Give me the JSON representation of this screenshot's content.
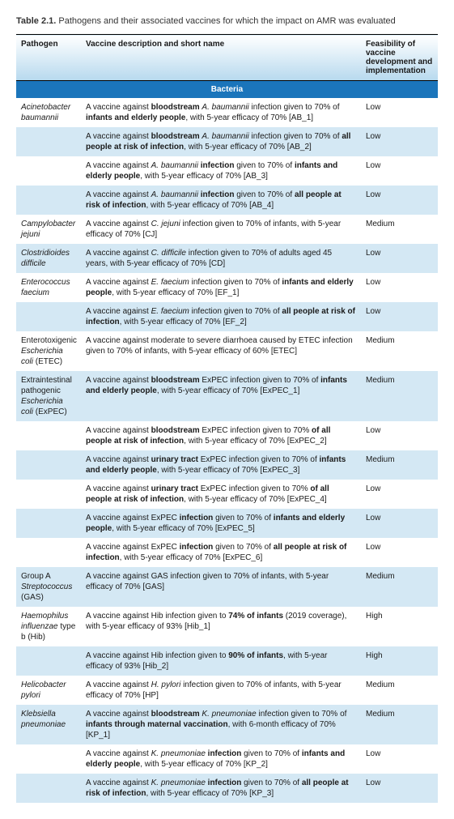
{
  "title_prefix": "Table 2.1.",
  "title_text": " Pathogens and their associated vaccines for which the impact on AMR was evaluated",
  "columns": {
    "c1": "Pathogen",
    "c2": "Vaccine description and short name",
    "c3": "Feasibility of vaccine development and implementation"
  },
  "section": "Bacteria",
  "rows": [
    {
      "alt": false,
      "pathogen": "Acinetobacter baumannii",
      "desc": "A vaccine against <b>bloodstream</b> <i>A. baumannii</i> infection given to 70% of <b>infants and elderly people</b>, with 5-year efficacy of 70% [AB_1]",
      "feas": "Low"
    },
    {
      "alt": true,
      "pathogen": "",
      "desc": "A vaccine against <b>bloodstream</b> <i>A. baumannii</i> infection given to 70% of <b>all people at risk of infection</b>, with 5-year efficacy of 70% [AB_2]",
      "feas": "Low"
    },
    {
      "alt": false,
      "pathogen": "",
      "desc": "A vaccine against <i>A. baumannii</i> <b>infection</b> given to 70% of <b>infants and elderly people</b>, with 5-year efficacy of 70% [AB_3]",
      "feas": "Low"
    },
    {
      "alt": true,
      "pathogen": "",
      "desc": "A vaccine against <i>A. baumannii</i> <b>infection</b> given to 70% of <b>all people at risk of infection</b>, with 5-year efficacy of 70% [AB_4]",
      "feas": "Low"
    },
    {
      "alt": false,
      "pathogen": "Campylobacter jejuni",
      "desc": "A vaccine against <i>C. jejuni</i> infection given to 70% of infants, with 5-year efficacy of 70% [CJ]",
      "feas": "Medium"
    },
    {
      "alt": true,
      "pathogen": "Clostridioides difficile",
      "desc": "A vaccine against <i>C. difficile</i> infection given to 70% of adults aged 45 years, with 5-year efficacy of 70% [CD]",
      "feas": "Low"
    },
    {
      "alt": false,
      "pathogen": "Enterococcus faecium",
      "desc": "A vaccine against <i>E. faecium</i> infection given to 70% of <b>infants and elderly people</b>, with 5-year efficacy of 70% [EF_1]",
      "feas": "Low"
    },
    {
      "alt": true,
      "pathogen": "",
      "desc": "A vaccine against <i>E. faecium</i> infection given to 70% of <b>all people at risk of infection</b>, with 5-year efficacy of 70% [EF_2]",
      "feas": "Low"
    },
    {
      "alt": false,
      "pathogen_html": "Enterotoxigenic <i>Escherichia coli</i> (ETEC)",
      "desc": "A vaccine against moderate to severe diarrhoea caused by ETEC infection given to 70% of infants, with 5-year efficacy of 60% [ETEC]",
      "feas": "Medium"
    },
    {
      "alt": true,
      "pathogen_html": "Extraintestinal pathogenic <i>Escherichia coli</i> (ExPEC)",
      "desc": "A vaccine against <b>bloodstream</b> ExPEC infection given to 70% of <b>infants and elderly people</b>, with 5-year efficacy of 70% [ExPEC_1]",
      "feas": "Medium"
    },
    {
      "alt": false,
      "pathogen": "",
      "desc": "A vaccine against <b>bloodstream</b> ExPEC infection given to 70% <b>of all people at risk of infection</b>, with 5-year efficacy of 70% [ExPEC_2]",
      "feas": "Low"
    },
    {
      "alt": true,
      "pathogen": "",
      "desc": "A vaccine against <b>urinary tract</b> ExPEC infection given to 70% of <b>infants and elderly people</b>, with 5-year efficacy of 70% [ExPEC_3]",
      "feas": "Medium"
    },
    {
      "alt": false,
      "pathogen": "",
      "desc": "A vaccine against <b>urinary tract</b> ExPEC infection given to 70% <b>of all people at risk of infection</b>, with 5-year efficacy of 70% [ExPEC_4]",
      "feas": "Low"
    },
    {
      "alt": true,
      "pathogen": "",
      "desc": "A vaccine against ExPEC <b>infection</b> given to 70% of <b>infants and elderly people</b>, with 5-year efficacy of 70% [ExPEC_5]",
      "feas": "Low"
    },
    {
      "alt": false,
      "pathogen": "",
      "desc": "A vaccine against ExPEC <b>infection</b> given to 70% of <b>all people at risk of infection</b>, with 5-year efficacy of 70% [ExPEC_6]",
      "feas": "Low"
    },
    {
      "alt": true,
      "pathogen_html": "Group A <i>Streptococcus</i> (GAS)",
      "desc": "A vaccine against GAS infection given to 70% of infants, with 5-year efficacy of 70% [GAS]",
      "feas": "Medium"
    },
    {
      "alt": false,
      "pathogen_html": "<i>Haemophilus influenzae</i> type b (Hib)",
      "desc": "A vaccine against Hib infection given to <b>74% of infants</b> (2019 coverage), with 5-year efficacy of 93% [Hib_1]",
      "feas": "High"
    },
    {
      "alt": true,
      "pathogen": "",
      "desc": "A vaccine against Hib infection given to <b>90% of infants</b>, with 5-year efficacy of 93% [Hib_2]",
      "feas": "High"
    },
    {
      "alt": false,
      "pathogen": "Helicobacter pylori",
      "desc": "A vaccine against <i>H. pylori</i> infection given to 70% of infants, with 5-year efficacy of 70% [HP]",
      "feas": "Medium"
    },
    {
      "alt": true,
      "pathogen": "Klebsiella pneumoniae",
      "desc": "A vaccine against <b>bloodstream</b> <i>K. pneumoniae</i> infection given to 70% of <b>infants through maternal vaccination</b>, with 6-month efficacy of 70% [KP_1]",
      "feas": "Medium"
    },
    {
      "alt": false,
      "pathogen": "",
      "desc": "A vaccine against <i>K. pneumoniae</i> <b>infection</b> given to 70% of <b>infants and elderly people</b>, with 5-year efficacy of 70% [KP_2]",
      "feas": "Low"
    },
    {
      "alt": true,
      "pathogen": "",
      "desc": "A vaccine against <i>K. pneumoniae</i> <b>infection</b> given to 70% of <b>all people at risk of infection</b>, with 5-year efficacy of 70% [KP_3]",
      "feas": "Low"
    }
  ]
}
